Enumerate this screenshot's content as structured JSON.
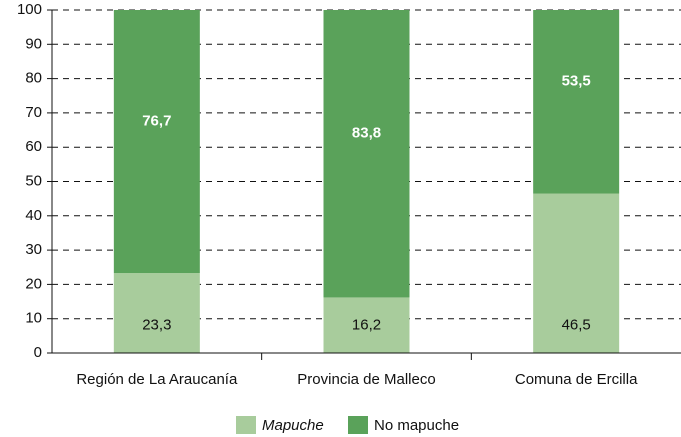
{
  "chart_data": {
    "type": "stacked_bar",
    "categories": [
      "Región de La Araucanía",
      "Provincia de Malleco",
      "Comuna de Ercilla"
    ],
    "series": [
      {
        "name": "Mapuche",
        "color": "#a8cc9c",
        "values": [
          23.3,
          16.2,
          46.5
        ],
        "value_labels": [
          "23,3",
          "16,2",
          "46,5"
        ]
      },
      {
        "name": "No mapuche",
        "color": "#5aa25a",
        "values": [
          76.7,
          83.8,
          53.5
        ],
        "value_labels": [
          "76,7",
          "83,8",
          "53,5"
        ]
      }
    ],
    "ylim": [
      0,
      100
    ],
    "yticks": [
      0,
      10,
      20,
      30,
      40,
      50,
      60,
      70,
      80,
      90,
      100
    ],
    "grid": true
  }
}
